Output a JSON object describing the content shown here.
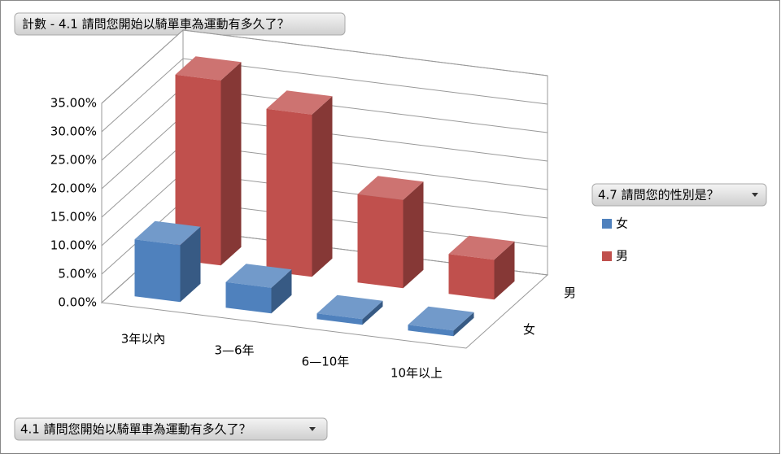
{
  "chart_data": {
    "type": "bar3d",
    "title": "計數 - 4.1 請問您開始以騎單車為運動有多久了？",
    "legend_title": "4.7 請問您的性別是？",
    "x_field_button": "4.1 請問您開始以騎單車為運動有多久了？",
    "categories": [
      "3年以內",
      "3—6年",
      "6—10年",
      "10年以上"
    ],
    "series": [
      {
        "name": "女",
        "color": "#4f81bd",
        "values": [
          10,
          4.5,
          1,
          1
        ]
      },
      {
        "name": "男",
        "color": "#c0504d",
        "values": [
          32.5,
          28.5,
          15.5,
          7
        ]
      }
    ],
    "ylim": [
      0,
      35
    ],
    "yticks": [
      {
        "value": 0,
        "label": "0.00%"
      },
      {
        "value": 5,
        "label": "5.00%"
      },
      {
        "value": 10,
        "label": "10.00%"
      },
      {
        "value": 15,
        "label": "15.00%"
      },
      {
        "value": 20,
        "label": "20.00%"
      },
      {
        "value": 25,
        "label": "25.00%"
      },
      {
        "value": 30,
        "label": "30.00%"
      },
      {
        "value": 35,
        "label": "35.00%"
      }
    ],
    "grid": true,
    "legend": "right"
  }
}
